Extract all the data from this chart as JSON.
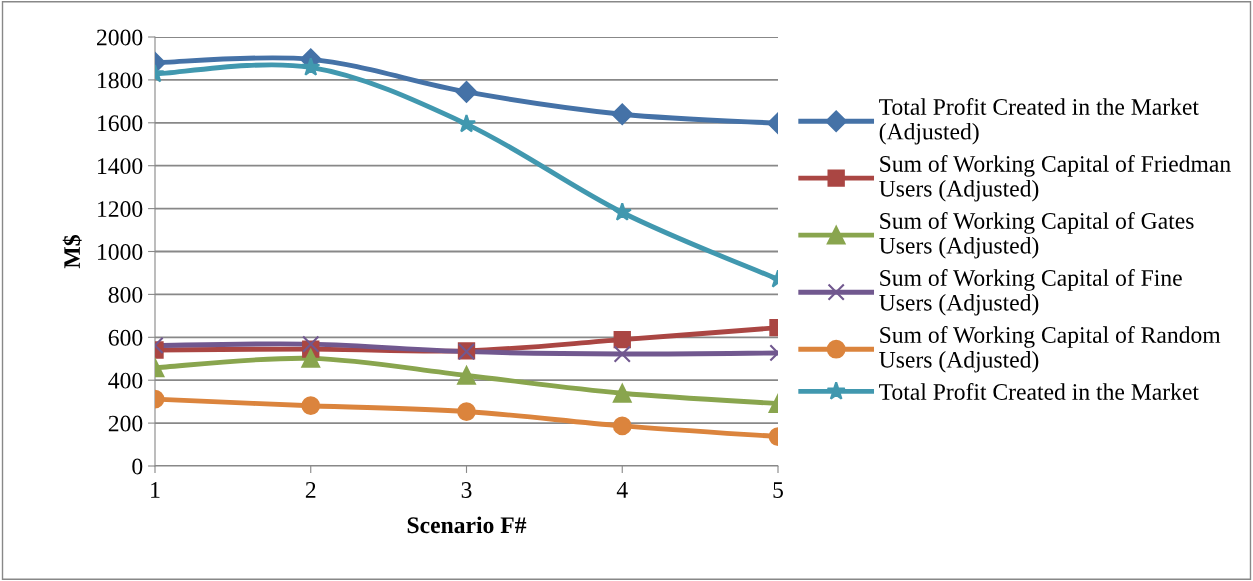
{
  "chart_data": {
    "type": "line",
    "xlabel": "Scenario F#",
    "ylabel": "M$",
    "categories": [
      "1",
      "2",
      "3",
      "4",
      "5"
    ],
    "ylim": [
      0,
      2000
    ],
    "yticks": [
      0,
      200,
      400,
      600,
      800,
      1000,
      1200,
      1400,
      1600,
      1800,
      2000
    ],
    "grid": "y",
    "legend": "right",
    "line_style": "solid",
    "series": [
      {
        "name": "Total Profit Created in the Market (Adjusted)",
        "color": "#4572a7",
        "marker": "diamond",
        "values": [
          1880,
          1896,
          1744,
          1640,
          1598
        ]
      },
      {
        "name": "Sum of Working Capital of Friedman Users (Adjusted)",
        "color": "#aa4643",
        "marker": "square",
        "values": [
          541,
          545,
          537,
          589,
          645
        ]
      },
      {
        "name": "Sum of Working Capital of Gates Users (Adjusted)",
        "color": "#89a54e",
        "marker": "triangle",
        "values": [
          458,
          502,
          422,
          339,
          291
        ]
      },
      {
        "name": "Sum of Working Capital of Fine Users (Adjusted)",
        "color": "#71588f",
        "marker": "cross",
        "values": [
          562,
          568,
          533,
          522,
          527
        ]
      },
      {
        "name": "Sum of Working Capital of Random Users (Adjusted)",
        "color": "#db843d",
        "marker": "circle",
        "values": [
          312,
          281,
          254,
          187,
          137
        ]
      },
      {
        "name": "Total Profit Created in the Market",
        "color": "#4198af",
        "marker": "star",
        "values": [
          1827,
          1858,
          1594,
          1182,
          870
        ]
      }
    ]
  }
}
